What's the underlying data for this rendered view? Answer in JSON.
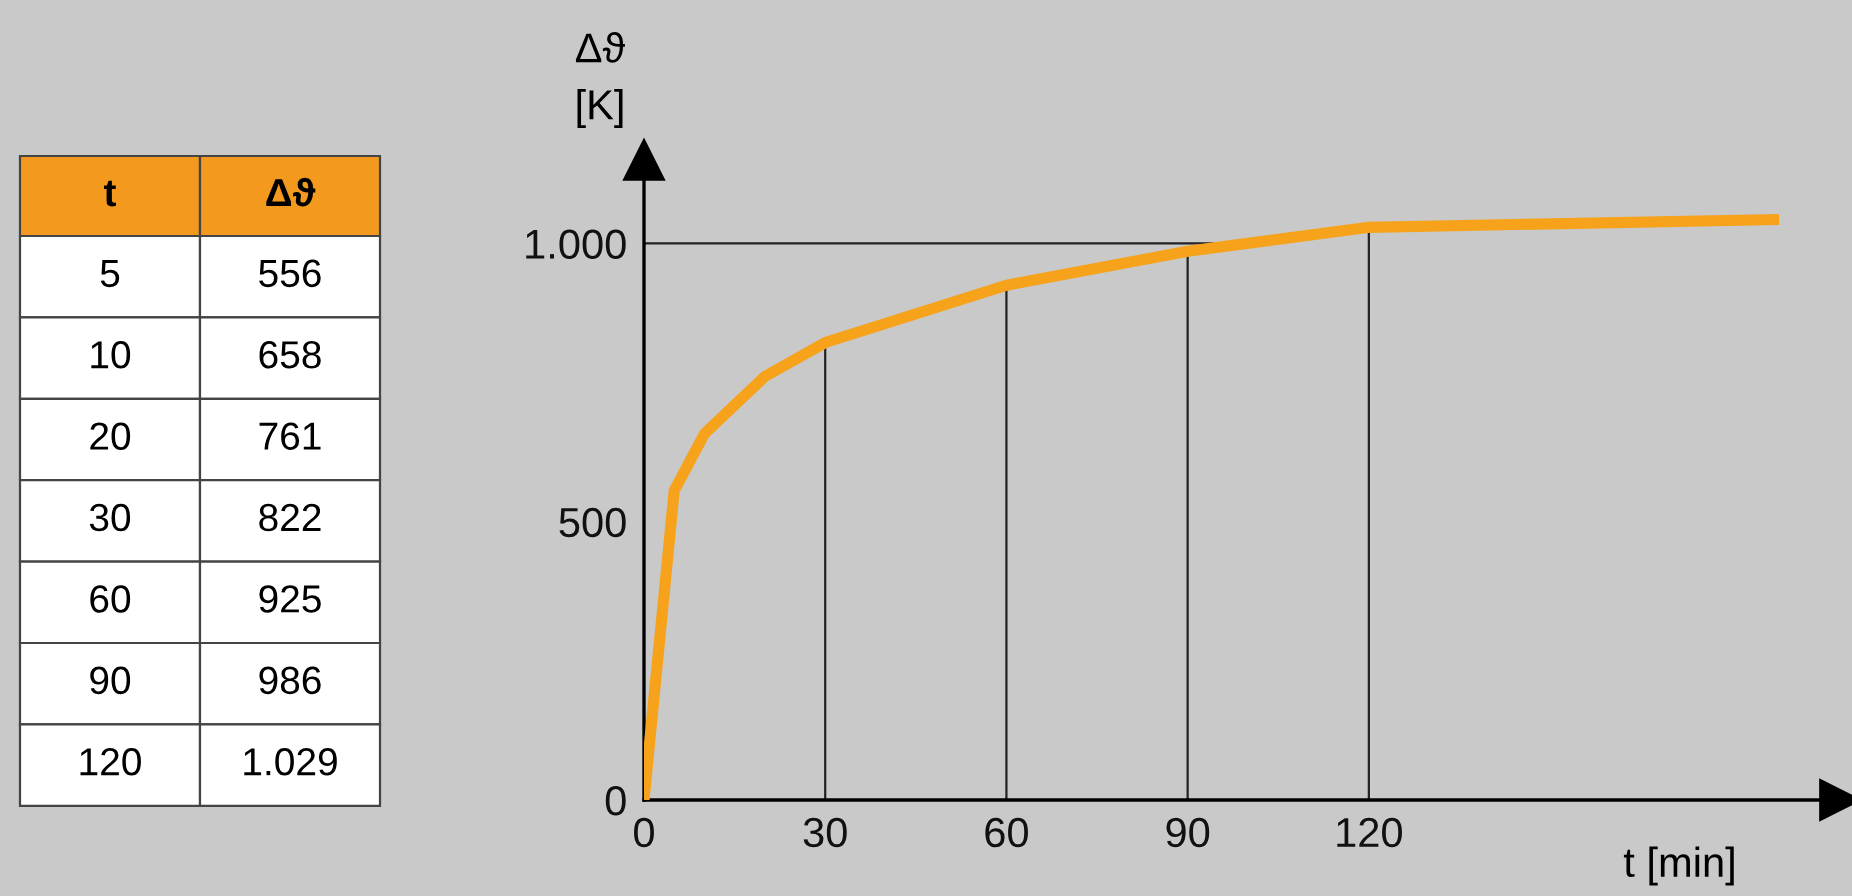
{
  "chart_data": [
    {
      "type": "other",
      "annotations": [
        "t",
        "Δϑ",
        "5",
        "556",
        "10",
        "658",
        "20",
        "761",
        "30",
        "822",
        "60",
        "925",
        "90",
        "986",
        "120",
        "1.029"
      ]
    },
    {
      "type": "line",
      "xlabel": "t [min]",
      "ylabel": "Δϑ\n[K]",
      "x": [
        0,
        5,
        10,
        20,
        30,
        60,
        90,
        120,
        187
      ],
      "series": [
        {
          "color": "#f7a21b",
          "values": [
            0,
            556,
            658,
            761,
            822,
            925,
            986,
            1029,
            1043
          ]
        }
      ],
      "xlim": [
        0,
        198
      ],
      "ylim": [
        0,
        1150
      ],
      "xticks": [
        0,
        30,
        60,
        90,
        120
      ],
      "yticks": [
        0,
        500,
        {
          "value": 1000,
          "label": "1.000"
        }
      ],
      "ref_lines": [
        {
          "axis": "y",
          "value": 1000,
          "color": "#222222"
        }
      ],
      "grid": "x",
      "marker": "none",
      "line_style": "solid"
    }
  ]
}
